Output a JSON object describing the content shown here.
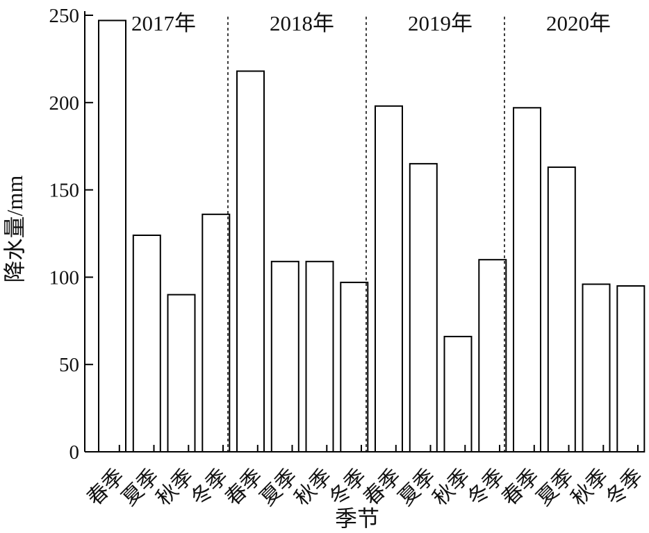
{
  "chart_data": {
    "type": "bar",
    "title": "",
    "xlabel": "季节",
    "ylabel": "降水量/mm",
    "ylim": [
      0,
      250
    ],
    "yticks": [
      0,
      50,
      100,
      150,
      200,
      250
    ],
    "grid": false,
    "legend": "none",
    "bar_fill": "#ffffff",
    "bar_stroke": "#000000",
    "groups": [
      {
        "year_label": "2017年",
        "categories": [
          "春季",
          "夏季",
          "秋季",
          "冬季"
        ],
        "values": [
          247,
          124,
          90,
          136
        ]
      },
      {
        "year_label": "2018年",
        "categories": [
          "春季",
          "夏季",
          "秋季",
          "冬季"
        ],
        "values": [
          218,
          109,
          109,
          97
        ]
      },
      {
        "year_label": "2019年",
        "categories": [
          "春季",
          "夏季",
          "秋季",
          "冬季"
        ],
        "values": [
          198,
          165,
          66,
          110
        ]
      },
      {
        "year_label": "2020年",
        "categories": [
          "春季",
          "夏季",
          "秋季",
          "冬季"
        ],
        "values": [
          197,
          163,
          96,
          95
        ]
      }
    ]
  }
}
